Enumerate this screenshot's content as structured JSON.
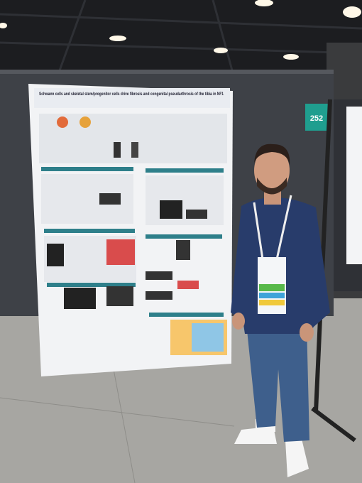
{
  "poster": {
    "title": "Schwann cells and skeletal stem/progenitor cells drive fibrosis and congenital pseudarthrosis of the tibia in NF1",
    "board_number": "252"
  }
}
